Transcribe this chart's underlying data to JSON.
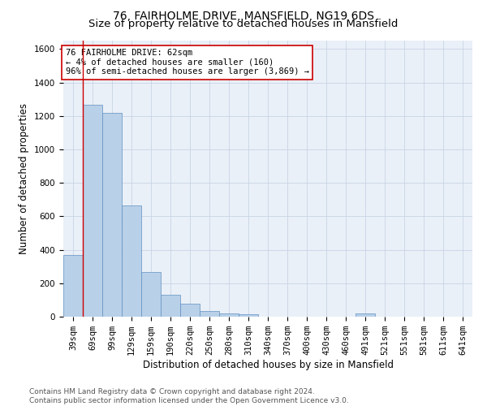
{
  "title": "76, FAIRHOLME DRIVE, MANSFIELD, NG19 6DS",
  "subtitle": "Size of property relative to detached houses in Mansfield",
  "xlabel": "Distribution of detached houses by size in Mansfield",
  "ylabel": "Number of detached properties",
  "categories": [
    "39sqm",
    "69sqm",
    "99sqm",
    "129sqm",
    "159sqm",
    "190sqm",
    "220sqm",
    "250sqm",
    "280sqm",
    "310sqm",
    "340sqm",
    "370sqm",
    "400sqm",
    "430sqm",
    "460sqm",
    "491sqm",
    "521sqm",
    "551sqm",
    "581sqm",
    "611sqm",
    "641sqm"
  ],
  "values": [
    370,
    1265,
    1220,
    665,
    265,
    130,
    80,
    35,
    20,
    15,
    0,
    0,
    0,
    0,
    0,
    20,
    0,
    0,
    0,
    0,
    0
  ],
  "bar_color": "#b8d0e8",
  "bar_edgecolor": "#6090c0",
  "highlight_color": "#cc0000",
  "vline_x": 0.5,
  "ylim": [
    0,
    1650
  ],
  "yticks": [
    0,
    200,
    400,
    600,
    800,
    1000,
    1200,
    1400,
    1600
  ],
  "annotation_text": "76 FAIRHOLME DRIVE: 62sqm\n← 4% of detached houses are smaller (160)\n96% of semi-detached houses are larger (3,869) →",
  "annotation_box_facecolor": "#ffffff",
  "annotation_box_edgecolor": "#cc0000",
  "footer_text": "Contains HM Land Registry data © Crown copyright and database right 2024.\nContains public sector information licensed under the Open Government Licence v3.0.",
  "background_color": "#ffffff",
  "plot_bg_color": "#eaf0f8",
  "grid_color": "#c8d4e4",
  "title_fontsize": 10,
  "subtitle_fontsize": 9.5,
  "axis_label_fontsize": 8.5,
  "tick_fontsize": 7.5,
  "annotation_fontsize": 7.5,
  "footer_fontsize": 6.5
}
